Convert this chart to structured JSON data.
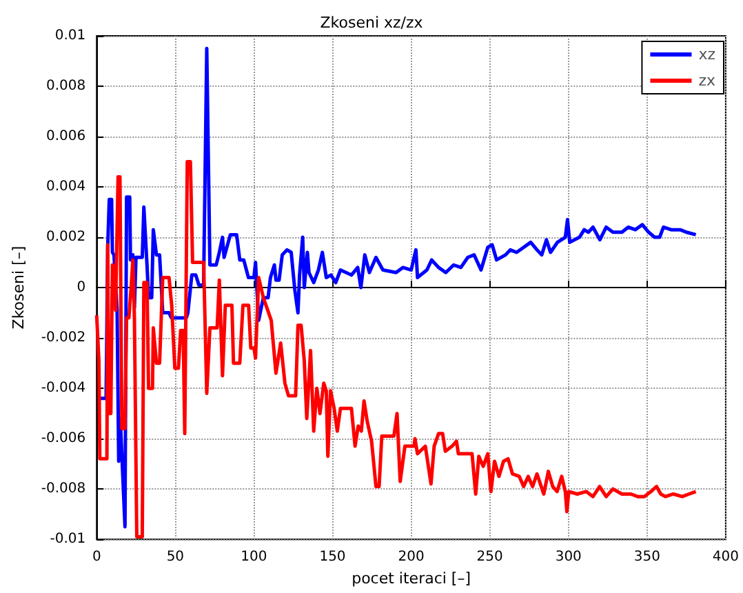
{
  "chart_data": {
    "type": "line",
    "title": "Zkoseni xz/zx",
    "xlabel": "pocet iteraci [–]",
    "ylabel": "Zkoseni [–]",
    "xlim": [
      0,
      400
    ],
    "xticks": [
      0,
      50,
      100,
      150,
      200,
      250,
      300,
      350,
      400
    ],
    "ylim": [
      -0.01,
      0.01
    ],
    "yticks": [
      -0.01,
      -0.008,
      -0.006,
      -0.004,
      -0.002,
      0,
      0.002,
      0.004,
      0.006,
      0.008,
      0.01
    ],
    "grid": true,
    "legend": "top right",
    "marker": "none",
    "line_style": "solid",
    "series": [
      {
        "name": "xz",
        "color": "#0000ff",
        "x": [
          2,
          6,
          7,
          8,
          9.5,
          10,
          11,
          13,
          14,
          15,
          18,
          19,
          21,
          21.5,
          23,
          24,
          25,
          29,
          30,
          32,
          33,
          35,
          36,
          38,
          40,
          42,
          46,
          47.5,
          52,
          57,
          58,
          60.5,
          63,
          65,
          68,
          70,
          72,
          76,
          78,
          80,
          81,
          85,
          89,
          91,
          93.5,
          96.5,
          100,
          101,
          103,
          106,
          109,
          110.5,
          113,
          114,
          116,
          118,
          121,
          123.7,
          126,
          128,
          129,
          131,
          132,
          134,
          135,
          138,
          141,
          143.5,
          146,
          149,
          152,
          155,
          162,
          166,
          168,
          170.5,
          173.4,
          177.6,
          182,
          190.4,
          194.7,
          200,
          203,
          204,
          210,
          213,
          217.4,
          222,
          227,
          231.6,
          236,
          240,
          244.4,
          248.7,
          251.5,
          254.3,
          260,
          263,
          267,
          271.5,
          276,
          280,
          283,
          286,
          288.6,
          293,
          298,
          299.4,
          300.8,
          307,
          310,
          312.7,
          315.6,
          320,
          324,
          328.3,
          334,
          338,
          342.5,
          347,
          351,
          354.8,
          358,
          360.4,
          365.3,
          371,
          375,
          381
        ],
        "values": [
          -0.0044,
          -0.0044,
          0.0016,
          0.0035,
          0.0035,
          0.0014,
          0.0013,
          -0.0009,
          -0.0069,
          -0.0052,
          -0.0095,
          0.0036,
          0.0036,
          0.0011,
          0.0013,
          -0.0008,
          0.0012,
          0.0012,
          0.0032,
          0.0009,
          -0.0004,
          -0.0004,
          0.0023,
          0.0013,
          0.0013,
          -0.001,
          -0.001,
          -0.0012,
          -0.0012,
          -0.0012,
          -0.001,
          0.0005,
          0.0005,
          0.0001,
          0.0001,
          0.0095,
          0.0009,
          0.0009,
          0.0014,
          0.002,
          0.0012,
          0.0021,
          0.0021,
          0.0011,
          0.0011,
          0.0004,
          0.0004,
          0.001,
          -0.0013,
          -0.0004,
          -0.0004,
          0.0004,
          0.0009,
          0.0003,
          0.0003,
          0.0013,
          0.0015,
          0.0014,
          -0.0001,
          -0.001,
          0.0005,
          0.002,
          0,
          0.0014,
          0.0006,
          0.0002,
          0.0007,
          0.0014,
          0.0004,
          0.0005,
          0.0002,
          0.0007,
          0.0005,
          0.0008,
          0,
          0.0013,
          0.0006,
          0.0012,
          0.0007,
          0.0006,
          0.0008,
          0.0007,
          0.0015,
          0.0004,
          0.0007,
          0.0011,
          0.0008,
          0.0006,
          0.0009,
          0.0008,
          0.0012,
          0.0013,
          0.0007,
          0.0016,
          0.0017,
          0.0011,
          0.0013,
          0.0015,
          0.0014,
          0.0016,
          0.0018,
          0.0015,
          0.0013,
          0.0019,
          0.0014,
          0.0018,
          0.002,
          0.0027,
          0.0018,
          0.002,
          0.0023,
          0.0022,
          0.0024,
          0.0019,
          0.0024,
          0.0022,
          0.0022,
          0.0024,
          0.0023,
          0.0025,
          0.0022,
          0.002,
          0.002,
          0.0024,
          0.0023,
          0.0023,
          0.0022,
          0.0021
        ]
      },
      {
        "name": "zx",
        "color": "#ff0000",
        "x": [
          0,
          1.4,
          2,
          6.5,
          7,
          7.7,
          9,
          10,
          11.4,
          12,
          13.6,
          14.8,
          16,
          18,
          19,
          20.5,
          22,
          23,
          24,
          25.5,
          29,
          30,
          32,
          33,
          35.5,
          36,
          38,
          40,
          42,
          46,
          47.7,
          49.7,
          52,
          53.4,
          55,
          56,
          57.6,
          59.6,
          61,
          68,
          70,
          72,
          76.6,
          78,
          80,
          81.8,
          86,
          87,
          91,
          93,
          96.6,
          98,
          100,
          101,
          103,
          106,
          111,
          114,
          117,
          119.7,
          122,
          126.5,
          128,
          130,
          132,
          133.6,
          136,
          138,
          140,
          142,
          144.4,
          146,
          147,
          148.7,
          151,
          153,
          155,
          162,
          164.3,
          166.3,
          168.3,
          170,
          172,
          174.8,
          177.6,
          179.6,
          181.3,
          189,
          191,
          193,
          196,
          201.8,
          202.4,
          204,
          209,
          212.6,
          214.6,
          217.4,
          220,
          221.7,
          226,
          228.8,
          230,
          237.3,
          238.7,
          241,
          243,
          245.8,
          248.7,
          250.7,
          253,
          255.8,
          258.7,
          261.6,
          264.4,
          268.7,
          271.5,
          274.4,
          277.2,
          280,
          284.3,
          287.2,
          290,
          292.8,
          295.7,
          298,
          299,
          300.2,
          305.6,
          311.3,
          315.6,
          319.8,
          324,
          328.3,
          334,
          339.7,
          344,
          348.2,
          352.5,
          356,
          358.7,
          361.6,
          366.7,
          372.4,
          376.6,
          381
        ],
        "values": [
          -0.0011,
          -0.0029,
          -0.0068,
          -0.0068,
          0.0017,
          -0.005,
          -0.005,
          0.0009,
          0.0008,
          -0.0009,
          0.0044,
          0.0044,
          -0.0056,
          -0.0056,
          -0.0012,
          -0.0012,
          0.0001,
          0.0011,
          -0.0012,
          -0.0099,
          -0.0099,
          0.0002,
          0.0002,
          -0.004,
          -0.004,
          -0.0016,
          -0.003,
          -0.003,
          0.0004,
          0.0004,
          -0.0007,
          -0.0032,
          -0.0032,
          -0.0017,
          -0.0017,
          -0.0058,
          0.005,
          0.005,
          0.001,
          0.001,
          -0.0042,
          -0.0016,
          -0.0016,
          0.0003,
          -0.0035,
          -0.0007,
          -0.0007,
          -0.003,
          -0.003,
          -0.0007,
          -0.0007,
          -0.0024,
          -0.0024,
          -0.0028,
          0.0004,
          -0.0004,
          -0.0013,
          -0.0034,
          -0.0022,
          -0.0038,
          -0.0043,
          -0.0043,
          -0.0015,
          -0.0015,
          -0.0029,
          -0.0052,
          -0.0025,
          -0.0057,
          -0.004,
          -0.005,
          -0.0038,
          -0.0041,
          -0.0067,
          -0.0041,
          -0.0048,
          -0.0057,
          -0.0048,
          -0.0048,
          -0.0063,
          -0.0055,
          -0.0057,
          -0.0045,
          -0.0053,
          -0.0061,
          -0.0079,
          -0.0079,
          -0.0059,
          -0.0059,
          -0.005,
          -0.0077,
          -0.0063,
          -0.0063,
          -0.006,
          -0.0066,
          -0.0063,
          -0.0078,
          -0.0063,
          -0.0058,
          -0.0058,
          -0.0065,
          -0.0063,
          -0.0061,
          -0.0066,
          -0.0066,
          -0.0066,
          -0.0082,
          -0.0067,
          -0.0071,
          -0.0066,
          -0.0081,
          -0.0069,
          -0.0075,
          -0.0069,
          -0.0068,
          -0.0074,
          -0.0075,
          -0.0079,
          -0.0075,
          -0.0079,
          -0.0074,
          -0.0082,
          -0.0073,
          -0.0079,
          -0.0081,
          -0.0075,
          -0.0081,
          -0.0089,
          -0.0081,
          -0.0082,
          -0.0081,
          -0.0083,
          -0.0079,
          -0.0083,
          -0.008,
          -0.0082,
          -0.0082,
          -0.0083,
          -0.0083,
          -0.0081,
          -0.0079,
          -0.0082,
          -0.0083,
          -0.0082,
          -0.0083,
          -0.0082,
          -0.0081
        ]
      }
    ]
  }
}
